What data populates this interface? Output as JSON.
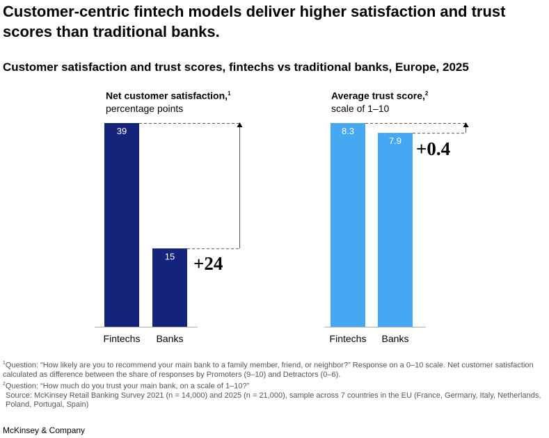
{
  "headline": "Customer-centric fintech models deliver higher satisfaction and trust scores than traditional banks.",
  "subtitle": "Customer satisfaction and trust scores, fintechs vs traditional banks, Europe, 2025",
  "chart_data": [
    {
      "type": "bar",
      "title": "Net customer satisfaction,",
      "title_sup": "1",
      "unit_label": "percentage points",
      "categories": [
        "Fintechs",
        "Banks"
      ],
      "values": [
        39,
        15
      ],
      "value_labels": [
        "39",
        "15"
      ],
      "difference_label": "+24",
      "ylim": [
        0,
        39
      ],
      "color": "#13247a"
    },
    {
      "type": "bar",
      "title": "Average trust score,",
      "title_sup": "2",
      "unit_label": "scale of 1–10",
      "categories": [
        "Fintechs",
        "Banks"
      ],
      "values": [
        8.3,
        7.9
      ],
      "value_labels": [
        "8.3",
        "7.9"
      ],
      "difference_label": "+0.4",
      "ylim": [
        0,
        8.3
      ],
      "color": "#46a8f2"
    }
  ],
  "footnotes": {
    "note1_sup": "1",
    "note1": "Question: “How likely are you to recommend your main bank to a family member, friend, or neighbor?” Response on a 0–10 scale. Net customer satisfaction calculated as difference between the share of responses by Promoters (9–10) and Detractors (0–6).",
    "note2_sup": "2",
    "note2": "Question: “How much do you trust your main bank, on a scale of 1–10?”",
    "source": "Source: McKinsey Retail Banking Survey 2021 (n = 14,000) and 2025 (n = 21,000), sample across 7 countries in the EU (France, Germany, Italy, Netherlands, Poland, Portugal, Spain)"
  },
  "brand": "McKinsey & Company"
}
